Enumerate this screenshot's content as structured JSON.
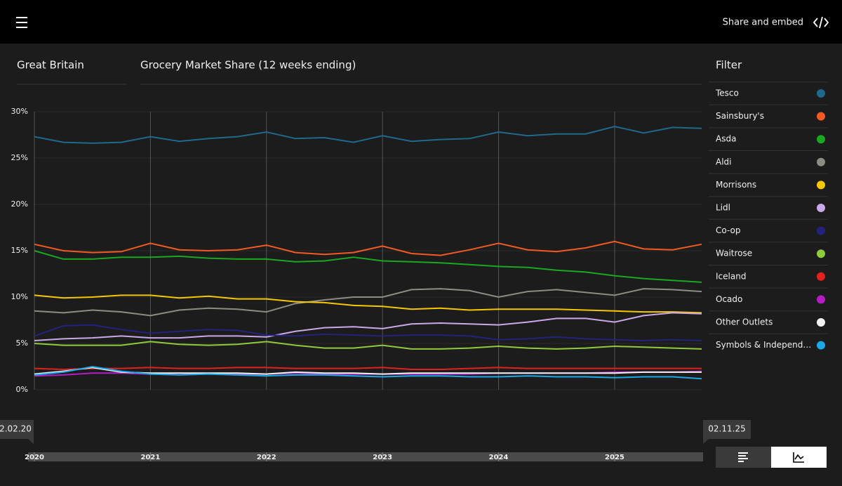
{
  "header": {
    "action": "Share and embed"
  },
  "region": "Great Britain",
  "filter": {
    "title": "Filter"
  },
  "range": {
    "start": "2.02.20",
    "end": "02.11.25"
  },
  "chart_data": {
    "type": "line",
    "title": "Grocery Market Share (12 weeks ending)",
    "x": [
      2020,
      2020.25,
      2020.5,
      2020.75,
      2021,
      2021.25,
      2021.5,
      2021.75,
      2022,
      2022.25,
      2022.5,
      2022.75,
      2023,
      2023.25,
      2023.5,
      2023.75,
      2024,
      2024.25,
      2024.5,
      2024.75,
      2025,
      2025.25,
      2025.5,
      2025.75
    ],
    "xlim": [
      2020,
      2025.75
    ],
    "xticks": [
      2020,
      2021,
      2022,
      2023,
      2024,
      2025
    ],
    "ylim": [
      0,
      30
    ],
    "yticks": [
      {
        "value": 0,
        "label": "0%"
      },
      {
        "value": 5,
        "label": "5%"
      },
      {
        "value": 10,
        "label": "10%"
      },
      {
        "value": 15,
        "label": "15%"
      },
      {
        "value": 20,
        "label": "20%"
      },
      {
        "value": 25,
        "label": "25%"
      },
      {
        "value": 30,
        "label": "30%"
      }
    ],
    "grid": true,
    "series": [
      {
        "name": "Tesco",
        "color": "#1f6a8c",
        "values": [
          27.3,
          26.7,
          26.6,
          26.7,
          27.3,
          26.8,
          27.1,
          27.3,
          27.8,
          27.1,
          27.2,
          26.7,
          27.4,
          26.8,
          27.0,
          27.1,
          27.8,
          27.4,
          27.6,
          27.6,
          28.4,
          27.7,
          28.3,
          28.2
        ]
      },
      {
        "name": "Sainsbury's",
        "color": "#f15a22",
        "values": [
          15.7,
          15.0,
          14.8,
          14.9,
          15.8,
          15.1,
          15.0,
          15.1,
          15.6,
          14.8,
          14.6,
          14.8,
          15.5,
          14.7,
          14.5,
          15.1,
          15.8,
          15.1,
          14.9,
          15.3,
          16.0,
          15.2,
          15.1,
          15.7
        ]
      },
      {
        "name": "Asda",
        "color": "#1aa81f",
        "values": [
          15.0,
          14.1,
          14.1,
          14.3,
          14.3,
          14.4,
          14.2,
          14.1,
          14.1,
          13.8,
          13.9,
          14.3,
          13.9,
          13.8,
          13.7,
          13.5,
          13.3,
          13.2,
          12.9,
          12.7,
          12.3,
          12.0,
          11.8,
          11.6
        ]
      },
      {
        "name": "Aldi",
        "color": "#8c8c84",
        "values": [
          8.5,
          8.3,
          8.6,
          8.4,
          8.0,
          8.6,
          8.8,
          8.7,
          8.4,
          9.3,
          9.7,
          10.0,
          10.0,
          10.8,
          10.9,
          10.7,
          10.0,
          10.6,
          10.8,
          10.5,
          10.2,
          10.9,
          10.8,
          10.6
        ]
      },
      {
        "name": "Morrisons",
        "color": "#f6c700",
        "values": [
          10.2,
          9.9,
          10.0,
          10.2,
          10.2,
          9.9,
          10.1,
          9.8,
          9.8,
          9.5,
          9.4,
          9.1,
          9.0,
          8.7,
          8.8,
          8.6,
          8.7,
          8.7,
          8.7,
          8.6,
          8.5,
          8.4,
          8.4,
          8.3
        ]
      },
      {
        "name": "Lidl",
        "color": "#caa9e8",
        "values": [
          5.3,
          5.5,
          5.6,
          5.8,
          5.6,
          5.6,
          5.8,
          5.8,
          5.7,
          6.3,
          6.7,
          6.8,
          6.6,
          7.1,
          7.2,
          7.1,
          7.0,
          7.3,
          7.7,
          7.7,
          7.3,
          8.0,
          8.3,
          8.2
        ]
      },
      {
        "name": "Co-op",
        "color": "#23237e",
        "values": [
          5.8,
          6.9,
          7.0,
          6.5,
          6.1,
          6.3,
          6.5,
          6.4,
          5.9,
          5.8,
          6.0,
          5.9,
          5.8,
          5.9,
          5.9,
          5.8,
          5.4,
          5.5,
          5.7,
          5.5,
          5.4,
          5.3,
          5.4,
          5.3
        ]
      },
      {
        "name": "Waitrose",
        "color": "#8ecb3c",
        "values": [
          5.0,
          4.8,
          4.8,
          4.8,
          5.2,
          4.9,
          4.8,
          4.9,
          5.2,
          4.8,
          4.5,
          4.5,
          4.8,
          4.4,
          4.4,
          4.5,
          4.7,
          4.5,
          4.4,
          4.5,
          4.7,
          4.6,
          4.5,
          4.4
        ]
      },
      {
        "name": "Iceland",
        "color": "#e3201b",
        "values": [
          2.3,
          2.2,
          2.3,
          2.3,
          2.4,
          2.3,
          2.3,
          2.4,
          2.4,
          2.3,
          2.3,
          2.3,
          2.4,
          2.2,
          2.2,
          2.3,
          2.4,
          2.3,
          2.3,
          2.3,
          2.3,
          2.3,
          2.3,
          2.3
        ]
      },
      {
        "name": "Ocado",
        "color": "#b51cc4",
        "values": [
          1.5,
          1.6,
          1.8,
          1.8,
          1.7,
          1.8,
          1.7,
          1.7,
          1.7,
          1.8,
          1.7,
          1.7,
          1.7,
          1.7,
          1.7,
          1.7,
          1.8,
          1.8,
          1.8,
          1.8,
          1.9,
          1.9,
          1.9,
          2.0
        ]
      },
      {
        "name": "Other Outlets",
        "color": "#f2f2f2",
        "values": [
          1.7,
          2.0,
          2.4,
          1.9,
          1.8,
          1.8,
          1.8,
          1.8,
          1.7,
          1.9,
          1.8,
          1.8,
          1.7,
          1.8,
          1.8,
          1.8,
          1.8,
          1.8,
          1.8,
          1.8,
          1.8,
          1.9,
          1.9,
          1.9
        ]
      },
      {
        "name": "Symbols & Independ…",
        "color": "#1ba8e8",
        "values": [
          1.6,
          1.9,
          2.5,
          2.0,
          1.7,
          1.6,
          1.7,
          1.6,
          1.5,
          1.6,
          1.6,
          1.5,
          1.4,
          1.5,
          1.5,
          1.4,
          1.4,
          1.5,
          1.4,
          1.4,
          1.3,
          1.4,
          1.4,
          1.2
        ]
      }
    ]
  }
}
